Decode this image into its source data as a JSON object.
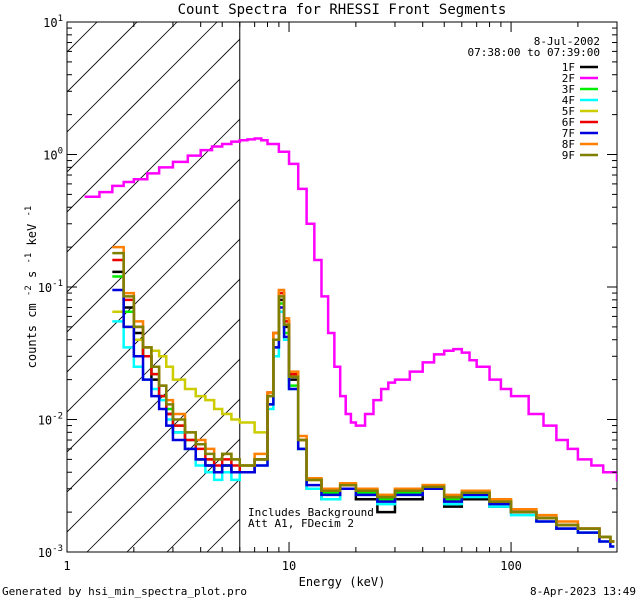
{
  "chart_data": {
    "type": "line",
    "title": "Count Spectra for RHESSI Front Segments",
    "date": "8-Jul-2002",
    "time_range": "07:38:00 to 07:39:00",
    "xlabel": "Energy (keV)",
    "ylabel_main": "counts cm",
    "ylabel_sup1": "-2",
    "ylabel_mid1": " s",
    "ylabel_sup2": "-1",
    "ylabel_mid2": " keV",
    "ylabel_sup3": "-1",
    "xscale": "log",
    "yscale": "log",
    "xlim": [
      1,
      300
    ],
    "ylim": [
      0.001,
      10
    ],
    "x_ticks": [
      {
        "value": 1,
        "label": "1"
      },
      {
        "value": 10,
        "label": "10"
      },
      {
        "value": 100,
        "label": "100"
      }
    ],
    "y_ticks": [
      {
        "value": 0.001,
        "base": "10",
        "exp": "-3"
      },
      {
        "value": 0.01,
        "base": "10",
        "exp": "-2"
      },
      {
        "value": 0.1,
        "base": "10",
        "exp": "-1"
      },
      {
        "value": 1,
        "base": "10",
        "exp": "0"
      },
      {
        "value": 10,
        "base": "10",
        "exp": "1"
      }
    ],
    "hatched_region": {
      "x_from": 1,
      "x_to": 6
    },
    "annotation_1": "Includes Background",
    "annotation_2": "Att A1, FDecim  2",
    "series": [
      {
        "name": "1F",
        "color": "#000000",
        "x": [
          1.6,
          1.8,
          2.0,
          2.2,
          2.4,
          2.6,
          2.8,
          3.0,
          3.4,
          3.8,
          4.2,
          4.6,
          5.0,
          5.5,
          6.0,
          7.0,
          8.0,
          8.5,
          9.0,
          9.5,
          10,
          11,
          12,
          14,
          17,
          20,
          25,
          30,
          40,
          50,
          60,
          80,
          100,
          130,
          160,
          200,
          250,
          280
        ],
        "y": [
          0.13,
          0.07,
          0.045,
          0.03,
          0.02,
          0.015,
          0.011,
          0.008,
          0.006,
          0.005,
          0.0045,
          0.004,
          0.0045,
          0.004,
          0.004,
          0.005,
          0.015,
          0.04,
          0.08,
          0.05,
          0.02,
          0.006,
          0.003,
          0.0025,
          0.003,
          0.0025,
          0.002,
          0.0025,
          0.003,
          0.0022,
          0.0025,
          0.0022,
          0.002,
          0.0018,
          0.0015,
          0.0015,
          0.0013,
          0.0012
        ]
      },
      {
        "name": "2F",
        "color": "#ff00ff",
        "x": [
          1.2,
          1.4,
          1.6,
          1.8,
          2.0,
          2.3,
          2.6,
          3.0,
          3.5,
          4.0,
          4.5,
          5.0,
          5.5,
          6.0,
          6.5,
          7.0,
          7.5,
          8.0,
          9.0,
          10,
          11,
          12,
          13,
          14,
          15,
          16,
          17,
          18,
          19,
          20,
          22,
          24,
          26,
          28,
          30,
          35,
          40,
          45,
          50,
          55,
          60,
          65,
          70,
          80,
          90,
          100,
          120,
          140,
          160,
          180,
          200,
          230,
          260,
          300
        ],
        "y": [
          0.48,
          0.52,
          0.58,
          0.62,
          0.65,
          0.72,
          0.8,
          0.88,
          0.98,
          1.08,
          1.15,
          1.2,
          1.25,
          1.28,
          1.3,
          1.32,
          1.28,
          1.2,
          1.05,
          0.85,
          0.55,
          0.3,
          0.16,
          0.085,
          0.045,
          0.025,
          0.015,
          0.011,
          0.0095,
          0.009,
          0.011,
          0.014,
          0.017,
          0.019,
          0.02,
          0.023,
          0.027,
          0.031,
          0.033,
          0.034,
          0.032,
          0.028,
          0.025,
          0.02,
          0.017,
          0.015,
          0.011,
          0.009,
          0.007,
          0.006,
          0.005,
          0.0045,
          0.004,
          0.0035
        ]
      },
      {
        "name": "3F",
        "color": "#00ee00",
        "x": [
          1.6,
          1.8,
          2.0,
          2.2,
          2.4,
          2.6,
          2.8,
          3.0,
          3.4,
          3.8,
          4.2,
          4.6,
          5.0,
          5.5,
          6.0,
          7.0,
          8.0,
          8.5,
          9.0,
          9.5,
          10,
          11,
          12,
          14,
          17,
          20,
          25,
          30,
          40,
          50,
          60,
          80,
          100,
          130,
          160,
          200,
          250,
          280
        ],
        "y": [
          0.12,
          0.065,
          0.04,
          0.03,
          0.022,
          0.015,
          0.012,
          0.009,
          0.007,
          0.005,
          0.005,
          0.004,
          0.0045,
          0.004,
          0.0045,
          0.005,
          0.013,
          0.035,
          0.075,
          0.045,
          0.018,
          0.006,
          0.0035,
          0.0028,
          0.0032,
          0.0028,
          0.0025,
          0.0028,
          0.003,
          0.0025,
          0.0028,
          0.0024,
          0.002,
          0.0018,
          0.0016,
          0.0014,
          0.0013,
          0.0012
        ]
      },
      {
        "name": "4F",
        "color": "#00ffff",
        "x": [
          1.6,
          1.8,
          2.0,
          2.2,
          2.4,
          2.6,
          2.8,
          3.0,
          3.4,
          3.8,
          4.2,
          4.6,
          5.0,
          5.5,
          6.0,
          7.0,
          8.0,
          8.5,
          9.0,
          9.5,
          10,
          11,
          12,
          14,
          17,
          20,
          25,
          30,
          40,
          50,
          60,
          80,
          100,
          130,
          160,
          200,
          250,
          280
        ],
        "y": [
          0.055,
          0.035,
          0.025,
          0.02,
          0.017,
          0.014,
          0.01,
          0.008,
          0.006,
          0.0045,
          0.004,
          0.0035,
          0.004,
          0.0035,
          0.004,
          0.0045,
          0.012,
          0.03,
          0.065,
          0.04,
          0.017,
          0.006,
          0.003,
          0.0025,
          0.003,
          0.0027,
          0.0023,
          0.0027,
          0.003,
          0.0023,
          0.0026,
          0.0022,
          0.0019,
          0.0017,
          0.0015,
          0.0014,
          0.0012,
          0.0011
        ]
      },
      {
        "name": "5F",
        "color": "#cccc00",
        "x": [
          1.6,
          1.8,
          2.0,
          2.2,
          2.4,
          2.6,
          2.8,
          3.0,
          3.4,
          3.8,
          4.2,
          4.6,
          5.0,
          5.5,
          6.0,
          7.0,
          8.0,
          8.5,
          9.0,
          9.5,
          10,
          11,
          12,
          14,
          17,
          20,
          25,
          30,
          40,
          50,
          60,
          80,
          100,
          130,
          160,
          200,
          250,
          280
        ],
        "y": [
          0.065,
          0.05,
          0.04,
          0.035,
          0.033,
          0.03,
          0.025,
          0.02,
          0.017,
          0.015,
          0.014,
          0.012,
          0.011,
          0.01,
          0.0095,
          0.008,
          0.015,
          0.04,
          0.09,
          0.055,
          0.022,
          0.007,
          0.0035,
          0.003,
          0.0033,
          0.003,
          0.0027,
          0.003,
          0.0032,
          0.0026,
          0.0028,
          0.0024,
          0.002,
          0.0018,
          0.0016,
          0.0015,
          0.0013,
          0.0012
        ]
      },
      {
        "name": "6F",
        "color": "#ee0000",
        "x": [
          1.6,
          1.8,
          2.0,
          2.2,
          2.4,
          2.6,
          2.8,
          3.0,
          3.4,
          3.8,
          4.2,
          4.6,
          5.0,
          5.5,
          6.0,
          7.0,
          8.0,
          8.5,
          9.0,
          9.5,
          10,
          11,
          12,
          14,
          17,
          20,
          25,
          30,
          40,
          50,
          60,
          80,
          100,
          130,
          160,
          200,
          250,
          280
        ],
        "y": [
          0.16,
          0.08,
          0.05,
          0.03,
          0.022,
          0.015,
          0.011,
          0.009,
          0.007,
          0.006,
          0.005,
          0.0045,
          0.005,
          0.0045,
          0.004,
          0.005,
          0.016,
          0.045,
          0.09,
          0.055,
          0.022,
          0.007,
          0.0035,
          0.0029,
          0.0032,
          0.0029,
          0.0026,
          0.0029,
          0.0031,
          0.0026,
          0.0028,
          0.0024,
          0.002,
          0.0018,
          0.0016,
          0.0015,
          0.0013,
          0.0012
        ]
      },
      {
        "name": "7F",
        "color": "#0000dd",
        "x": [
          1.6,
          1.8,
          2.0,
          2.2,
          2.4,
          2.6,
          2.8,
          3.0,
          3.4,
          3.8,
          4.2,
          4.6,
          5.0,
          5.5,
          6.0,
          7.0,
          8.0,
          8.5,
          9.0,
          9.5,
          10,
          11,
          12,
          14,
          17,
          20,
          25,
          30,
          40,
          50,
          60,
          80,
          100,
          130,
          160,
          200,
          250,
          280
        ],
        "y": [
          0.095,
          0.05,
          0.03,
          0.02,
          0.015,
          0.012,
          0.009,
          0.007,
          0.006,
          0.005,
          0.0045,
          0.004,
          0.0045,
          0.004,
          0.004,
          0.0045,
          0.013,
          0.035,
          0.07,
          0.042,
          0.017,
          0.006,
          0.0032,
          0.0027,
          0.003,
          0.0027,
          0.0024,
          0.0027,
          0.003,
          0.0024,
          0.0027,
          0.0023,
          0.002,
          0.0017,
          0.0015,
          0.0014,
          0.0012,
          0.0011
        ]
      },
      {
        "name": "8F",
        "color": "#ff8000",
        "x": [
          1.6,
          1.8,
          2.0,
          2.2,
          2.4,
          2.6,
          2.8,
          3.0,
          3.4,
          3.8,
          4.2,
          4.6,
          5.0,
          5.5,
          6.0,
          7.0,
          8.0,
          8.5,
          9.0,
          9.5,
          10,
          11,
          12,
          14,
          17,
          20,
          25,
          30,
          40,
          50,
          60,
          80,
          100,
          130,
          160,
          200,
          250,
          280
        ],
        "y": [
          0.2,
          0.09,
          0.055,
          0.035,
          0.025,
          0.018,
          0.014,
          0.011,
          0.008,
          0.007,
          0.006,
          0.005,
          0.0055,
          0.005,
          0.0045,
          0.0055,
          0.016,
          0.045,
          0.095,
          0.058,
          0.023,
          0.0075,
          0.0036,
          0.003,
          0.0033,
          0.003,
          0.0027,
          0.003,
          0.0032,
          0.0027,
          0.0029,
          0.0025,
          0.0021,
          0.0019,
          0.0017,
          0.0015,
          0.0013,
          0.0012
        ]
      },
      {
        "name": "9F",
        "color": "#808000",
        "x": [
          1.6,
          1.8,
          2.0,
          2.2,
          2.4,
          2.6,
          2.8,
          3.0,
          3.4,
          3.8,
          4.2,
          4.6,
          5.0,
          5.5,
          6.0,
          7.0,
          8.0,
          8.5,
          9.0,
          9.5,
          10,
          11,
          12,
          14,
          17,
          20,
          25,
          30,
          40,
          50,
          60,
          80,
          100,
          130,
          160,
          200,
          250,
          280
        ],
        "y": [
          0.18,
          0.085,
          0.05,
          0.035,
          0.025,
          0.018,
          0.013,
          0.01,
          0.008,
          0.0065,
          0.0055,
          0.005,
          0.0055,
          0.005,
          0.0045,
          0.005,
          0.015,
          0.04,
          0.085,
          0.052,
          0.021,
          0.007,
          0.0035,
          0.0029,
          0.0032,
          0.0029,
          0.0026,
          0.0029,
          0.0031,
          0.0026,
          0.0028,
          0.0024,
          0.002,
          0.0018,
          0.0016,
          0.0015,
          0.0013,
          0.0012
        ]
      }
    ]
  },
  "footer": {
    "generated_by": "Generated by hsi_min_spectra_plot.pro",
    "timestamp": "8-Apr-2023 13:49"
  }
}
